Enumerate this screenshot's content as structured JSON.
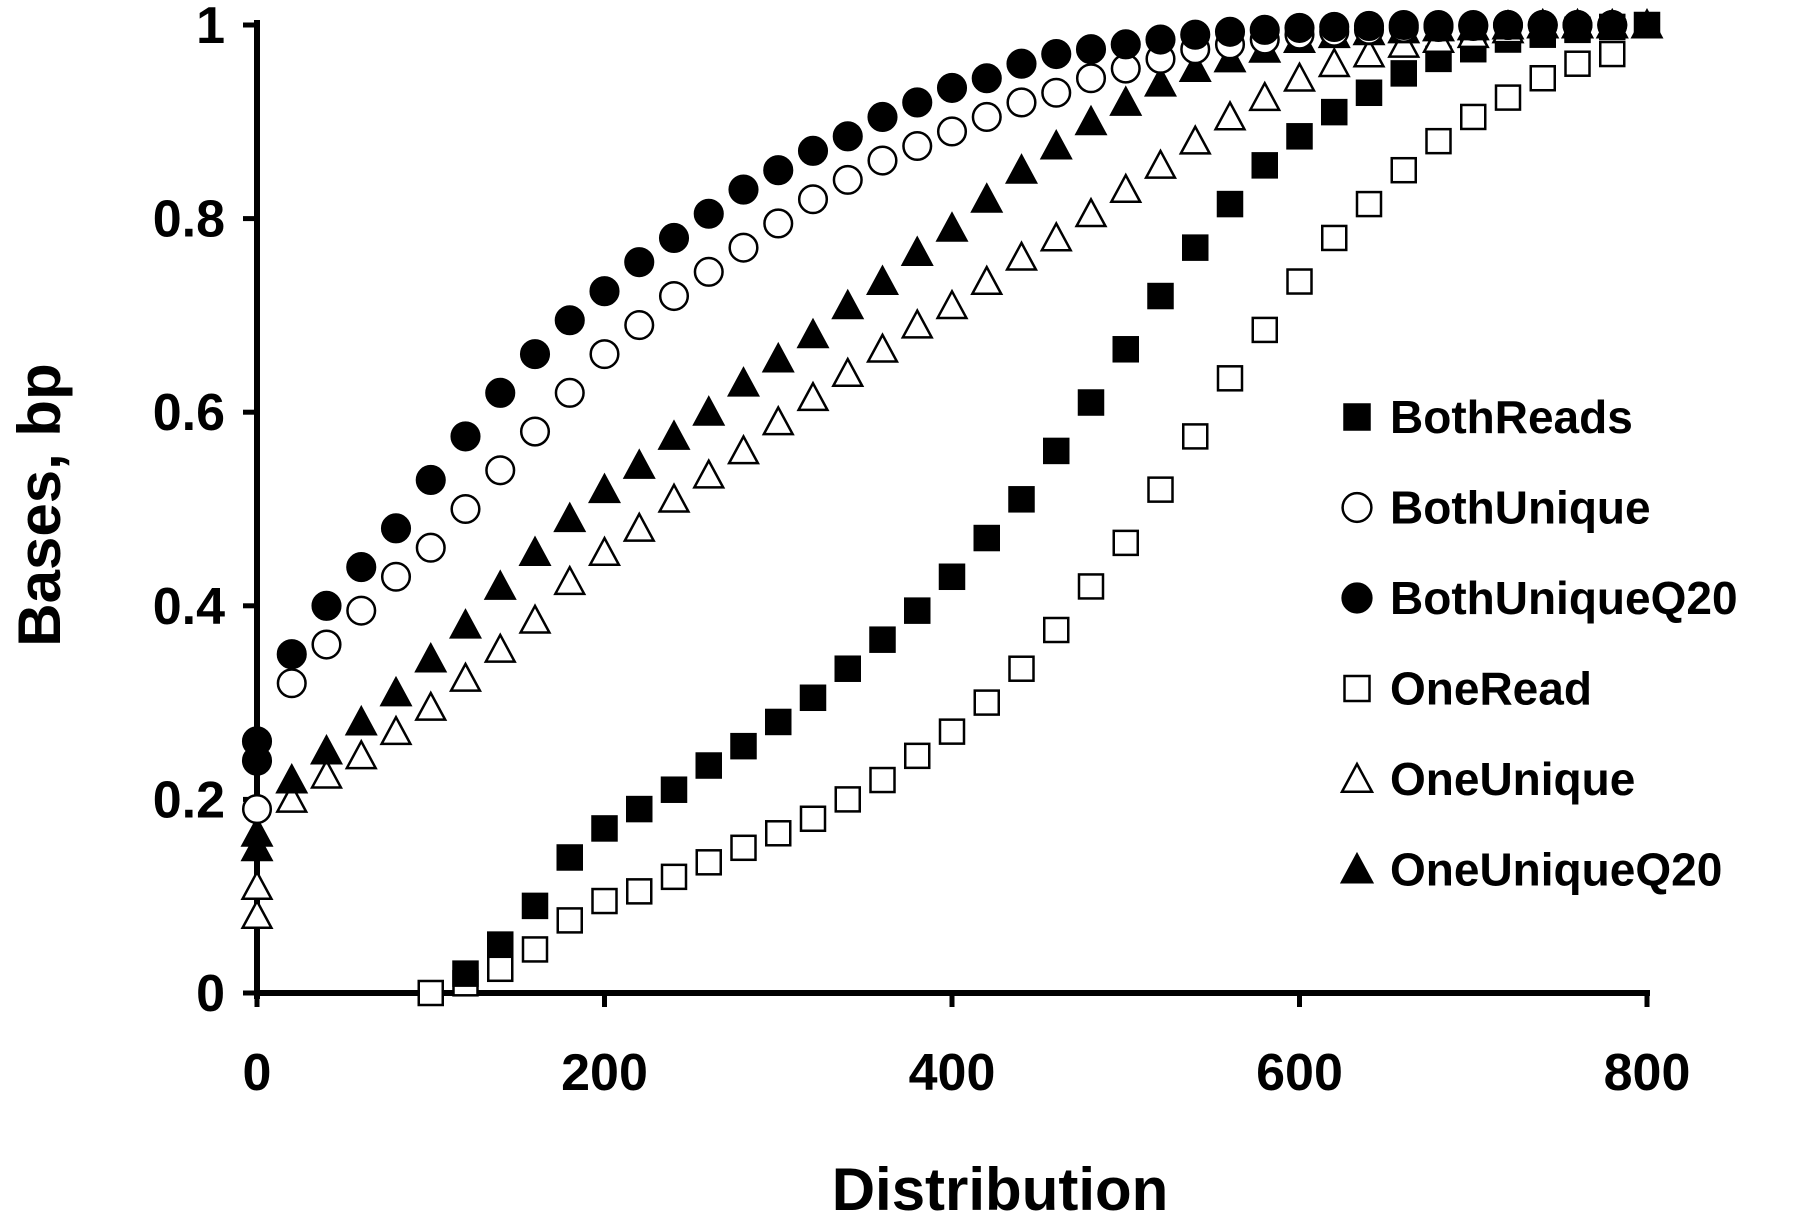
{
  "chart_data": {
    "type": "scatter",
    "title": "",
    "xlabel": "Distribution",
    "ylabel": "Bases, bp",
    "xlim": [
      0,
      800
    ],
    "ylim": [
      0,
      1
    ],
    "xticks": [
      0,
      200,
      400,
      600,
      800
    ],
    "yticks": [
      0,
      0.2,
      0.4,
      0.6,
      0.8,
      1
    ],
    "ytick_labels": [
      "0",
      "0.2",
      "0.4",
      "0.6",
      "0.8",
      "1"
    ],
    "grid": false,
    "legend_position": "right",
    "series": [
      {
        "name": "BothReads",
        "marker": "square",
        "filled": true,
        "x": [
          120,
          140,
          160,
          180,
          200,
          220,
          240,
          260,
          280,
          300,
          320,
          340,
          360,
          380,
          400,
          420,
          440,
          460,
          480,
          500,
          520,
          540,
          560,
          580,
          600,
          620,
          640,
          660,
          680,
          700,
          720,
          740,
          760,
          780,
          800
        ],
        "y": [
          0.02,
          0.05,
          0.09,
          0.14,
          0.17,
          0.19,
          0.21,
          0.235,
          0.255,
          0.28,
          0.305,
          0.335,
          0.365,
          0.395,
          0.43,
          0.47,
          0.51,
          0.56,
          0.61,
          0.665,
          0.72,
          0.77,
          0.815,
          0.855,
          0.885,
          0.91,
          0.93,
          0.95,
          0.965,
          0.975,
          0.985,
          0.99,
          0.995,
          0.998,
          1.0
        ]
      },
      {
        "name": "BothUnique",
        "marker": "circle",
        "filled": false,
        "x": [
          0,
          20,
          40,
          60,
          80,
          100,
          120,
          140,
          160,
          180,
          200,
          220,
          240,
          260,
          280,
          300,
          320,
          340,
          360,
          380,
          400,
          420,
          440,
          460,
          480,
          500,
          520,
          540,
          560,
          580,
          600,
          620,
          640,
          660,
          680,
          700,
          720,
          740,
          760,
          780
        ],
        "y": [
          0.19,
          0.32,
          0.36,
          0.395,
          0.43,
          0.46,
          0.5,
          0.54,
          0.58,
          0.62,
          0.66,
          0.69,
          0.72,
          0.745,
          0.77,
          0.795,
          0.82,
          0.84,
          0.86,
          0.875,
          0.89,
          0.905,
          0.92,
          0.93,
          0.945,
          0.955,
          0.965,
          0.975,
          0.98,
          0.985,
          0.99,
          0.993,
          0.995,
          0.997,
          0.998,
          0.999,
          1.0,
          1.0,
          1.0,
          1.0
        ]
      },
      {
        "name": "BothUniqueQ20",
        "marker": "circle",
        "filled": true,
        "x": [
          0,
          0,
          20,
          40,
          60,
          80,
          100,
          120,
          140,
          160,
          180,
          200,
          220,
          240,
          260,
          280,
          300,
          320,
          340,
          360,
          380,
          400,
          420,
          440,
          460,
          480,
          500,
          520,
          540,
          560,
          580,
          600,
          620,
          640,
          660,
          680,
          700,
          720,
          740,
          760,
          780
        ],
        "y": [
          0.24,
          0.26,
          0.35,
          0.4,
          0.44,
          0.48,
          0.53,
          0.575,
          0.62,
          0.66,
          0.695,
          0.725,
          0.755,
          0.78,
          0.805,
          0.83,
          0.85,
          0.87,
          0.885,
          0.905,
          0.92,
          0.935,
          0.945,
          0.96,
          0.97,
          0.975,
          0.98,
          0.985,
          0.99,
          0.993,
          0.995,
          0.997,
          0.998,
          0.999,
          1.0,
          1.0,
          1.0,
          1.0,
          1.0,
          1.0,
          1.0
        ]
      },
      {
        "name": "OneRead",
        "marker": "square",
        "filled": false,
        "x": [
          100,
          120,
          140,
          160,
          180,
          200,
          220,
          240,
          260,
          280,
          300,
          320,
          340,
          360,
          380,
          400,
          420,
          440,
          460,
          480,
          500,
          520,
          540,
          560,
          580,
          600,
          620,
          640,
          660,
          680,
          700,
          720,
          740,
          760,
          780
        ],
        "y": [
          0.0,
          0.01,
          0.025,
          0.045,
          0.075,
          0.095,
          0.105,
          0.12,
          0.135,
          0.15,
          0.165,
          0.18,
          0.2,
          0.22,
          0.245,
          0.27,
          0.3,
          0.335,
          0.375,
          0.42,
          0.465,
          0.52,
          0.575,
          0.635,
          0.685,
          0.735,
          0.78,
          0.815,
          0.85,
          0.88,
          0.905,
          0.925,
          0.945,
          0.96,
          0.97
        ]
      },
      {
        "name": "OneUnique",
        "marker": "triangle",
        "filled": false,
        "x": [
          0,
          0,
          20,
          40,
          60,
          80,
          100,
          120,
          140,
          160,
          180,
          200,
          220,
          240,
          260,
          280,
          300,
          320,
          340,
          360,
          380,
          400,
          420,
          440,
          460,
          480,
          500,
          520,
          540,
          560,
          580,
          600,
          620,
          640,
          660,
          680,
          700,
          720,
          740,
          760,
          780
        ],
        "y": [
          0.08,
          0.11,
          0.2,
          0.225,
          0.245,
          0.27,
          0.295,
          0.325,
          0.355,
          0.385,
          0.425,
          0.455,
          0.48,
          0.51,
          0.535,
          0.56,
          0.59,
          0.615,
          0.64,
          0.665,
          0.69,
          0.71,
          0.735,
          0.76,
          0.78,
          0.805,
          0.83,
          0.855,
          0.88,
          0.905,
          0.925,
          0.945,
          0.96,
          0.97,
          0.98,
          0.985,
          0.99,
          0.995,
          1.0,
          1.0,
          1.0
        ]
      },
      {
        "name": "OneUniqueQ20",
        "marker": "triangle",
        "filled": true,
        "x": [
          0,
          0,
          20,
          40,
          60,
          80,
          100,
          120,
          140,
          160,
          180,
          200,
          220,
          240,
          260,
          280,
          300,
          320,
          340,
          360,
          380,
          400,
          420,
          440,
          460,
          480,
          500,
          520,
          540,
          560,
          580,
          600,
          620,
          640,
          660,
          680,
          700,
          720,
          740,
          760,
          780,
          800
        ],
        "y": [
          0.15,
          0.165,
          0.22,
          0.25,
          0.28,
          0.31,
          0.345,
          0.38,
          0.42,
          0.455,
          0.49,
          0.52,
          0.545,
          0.575,
          0.6,
          0.63,
          0.655,
          0.68,
          0.71,
          0.735,
          0.765,
          0.79,
          0.82,
          0.85,
          0.875,
          0.9,
          0.92,
          0.94,
          0.955,
          0.965,
          0.975,
          0.985,
          0.99,
          0.993,
          0.995,
          0.997,
          0.998,
          0.999,
          1.0,
          1.0,
          1.0,
          1.0
        ]
      }
    ]
  }
}
